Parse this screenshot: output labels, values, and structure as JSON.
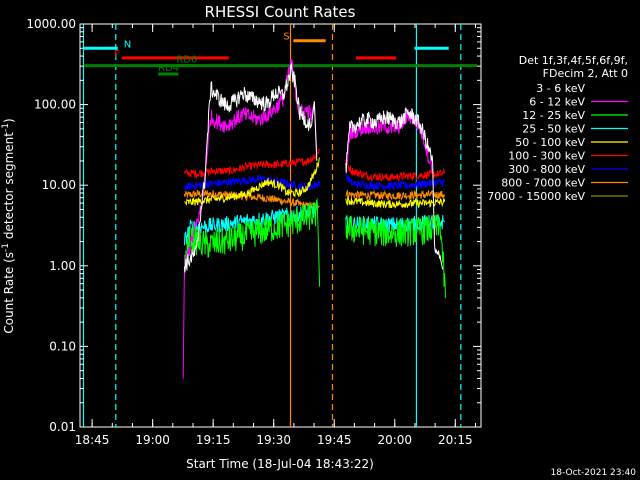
{
  "chart_data": {
    "type": "line",
    "title": "RHESSI Count Rates",
    "xlabel": "Start Time (18-Jul-04 18:43:22)",
    "ylabel_main": "Count Rate (s",
    "ylabel_sup": "-1",
    "ylabel_rest": " detector segment",
    "ylabel_sup2": "-1",
    "ylabel_close": ")",
    "yscale": "log",
    "ylim": [
      0.01,
      1000
    ],
    "xlim": [
      "18:43:22",
      "20:23:00"
    ],
    "y_tick_labels": [
      "0.01",
      "0.10",
      "1.00",
      "10.00",
      "100.00",
      "1000.00"
    ],
    "y_tick_values": [
      0.01,
      0.1,
      1,
      10,
      100,
      1000
    ],
    "x_tick_labels": [
      "18:45",
      "19:00",
      "19:15",
      "19:30",
      "19:45",
      "20:00",
      "20:15"
    ],
    "x_tick_minutes": [
      1.633,
      16.633,
      31.633,
      46.633,
      61.633,
      76.633,
      91.633
    ],
    "legend_header": [
      "Det 1f,3f,4f,5f,6f,9f,",
      "FDecim 2, Att 0"
    ],
    "series": [
      {
        "name": "3 - 6 keV",
        "color": "#000000",
        "seg1": [
          [
            24.5,
            1.0
          ],
          [
            27.5,
            1.5
          ],
          [
            28.5,
            4.5
          ],
          [
            29.5,
            11.0
          ],
          [
            31,
            160
          ],
          [
            33,
            120
          ],
          [
            35,
            95
          ],
          [
            37,
            110
          ],
          [
            39,
            140
          ],
          [
            41,
            120
          ],
          [
            43,
            110
          ],
          [
            45,
            100
          ],
          [
            47,
            140
          ],
          [
            49,
            130
          ],
          [
            51,
            260
          ],
          [
            52,
            180
          ],
          [
            53,
            80
          ],
          [
            55,
            60
          ],
          [
            56,
            55
          ],
          [
            56.7,
            110
          ],
          [
            57.3,
            20
          ]
        ],
        "seg2": [
          [
            64.5,
            15
          ],
          [
            65.5,
            50
          ],
          [
            68,
            60
          ],
          [
            70,
            65
          ],
          [
            72,
            60
          ],
          [
            74,
            70
          ],
          [
            76,
            65
          ],
          [
            78,
            60
          ],
          [
            80,
            80
          ],
          [
            82,
            65
          ],
          [
            83,
            55
          ],
          [
            84,
            40
          ],
          [
            86,
            20
          ],
          [
            86.5,
            1.5
          ],
          [
            88,
            1.2
          ],
          [
            88.5,
            0.9
          ]
        ]
      },
      {
        "name": "6 - 12 keV",
        "color": "#ff00ff",
        "seg1": [
          [
            24.2,
            0.04
          ],
          [
            24.5,
            1.0
          ],
          [
            28.8,
            5.5
          ],
          [
            29.5,
            12
          ],
          [
            31,
            70
          ],
          [
            33,
            60
          ],
          [
            35,
            55
          ],
          [
            37,
            65
          ],
          [
            39,
            75
          ],
          [
            41,
            70
          ],
          [
            43,
            65
          ],
          [
            45,
            75
          ],
          [
            47,
            90
          ],
          [
            49,
            120
          ],
          [
            50,
            200
          ],
          [
            51,
            350
          ],
          [
            52,
            150
          ],
          [
            53,
            80
          ],
          [
            55,
            85
          ],
          [
            56,
            75
          ],
          [
            56.7,
            110
          ],
          [
            57.3,
            25
          ]
        ],
        "seg2": [
          [
            64.5,
            12
          ],
          [
            65.5,
            45
          ],
          [
            68,
            50
          ],
          [
            70,
            55
          ],
          [
            72,
            50
          ],
          [
            74,
            55
          ],
          [
            76,
            50
          ],
          [
            78,
            55
          ],
          [
            80,
            75
          ],
          [
            82,
            60
          ],
          [
            83,
            50
          ],
          [
            84,
            35
          ],
          [
            86,
            15
          ]
        ]
      },
      {
        "name": "12 - 25 keV",
        "color": "#00ff00",
        "seg1": [
          [
            24.5,
            1.0
          ],
          [
            26,
            2.2
          ],
          [
            30,
            1.8
          ],
          [
            35,
            2.0
          ],
          [
            40,
            2.4
          ],
          [
            45,
            2.8
          ],
          [
            50,
            3.3
          ],
          [
            55,
            4.0
          ],
          [
            57.5,
            4.5
          ],
          [
            58.0,
            0.55
          ]
        ],
        "seg2": [
          [
            64.5,
            3.0
          ],
          [
            66,
            2.8
          ],
          [
            70,
            2.7
          ],
          [
            75,
            2.5
          ],
          [
            80,
            2.6
          ],
          [
            85,
            2.8
          ],
          [
            88,
            3.0
          ],
          [
            89.2,
            0.4
          ]
        ]
      },
      {
        "name": "25 - 50 keV",
        "color": "#00ffff",
        "seg1": [
          [
            24.5,
            2.0
          ],
          [
            26,
            3.0
          ],
          [
            30,
            3.1
          ],
          [
            35,
            3.3
          ],
          [
            40,
            3.6
          ],
          [
            45,
            3.9
          ],
          [
            50,
            4.2
          ],
          [
            55,
            4.6
          ],
          [
            57.5,
            5.0
          ]
        ],
        "seg2": [
          [
            64.5,
            3.4
          ],
          [
            66,
            3.3
          ],
          [
            70,
            3.3
          ],
          [
            75,
            3.2
          ],
          [
            80,
            3.3
          ],
          [
            85,
            3.4
          ],
          [
            89,
            3.5
          ]
        ]
      },
      {
        "name": "50 - 100 keV",
        "color": "#ffff00",
        "seg1": [
          [
            24.5,
            6.0
          ],
          [
            30,
            6.5
          ],
          [
            35,
            7.0
          ],
          [
            40,
            7.8
          ],
          [
            42,
            9.0
          ],
          [
            45,
            11
          ],
          [
            48,
            10
          ],
          [
            50,
            8.0
          ],
          [
            53,
            8.0
          ],
          [
            55,
            9.5
          ],
          [
            57,
            15
          ],
          [
            58,
            22
          ]
        ],
        "seg2": [
          [
            64.5,
            6.5
          ],
          [
            70,
            6.0
          ],
          [
            75,
            5.8
          ],
          [
            80,
            5.9
          ],
          [
            85,
            6.0
          ],
          [
            89,
            6.2
          ]
        ]
      },
      {
        "name": "100 - 300 keV",
        "color": "#ff0000",
        "seg1": [
          [
            24.5,
            14
          ],
          [
            28,
            14
          ],
          [
            32,
            15
          ],
          [
            36,
            15
          ],
          [
            40,
            17
          ],
          [
            44,
            18
          ],
          [
            48,
            18
          ],
          [
            52,
            19
          ],
          [
            55,
            20
          ],
          [
            57,
            23
          ],
          [
            58,
            28
          ]
        ],
        "seg2": [
          [
            64.5,
            19
          ],
          [
            66,
            15
          ],
          [
            70,
            13
          ],
          [
            75,
            12.5
          ],
          [
            80,
            13
          ],
          [
            85,
            13.5
          ],
          [
            89,
            14
          ]
        ]
      },
      {
        "name": "300 - 800 keV",
        "color": "#0000ff",
        "seg1": [
          [
            24.5,
            9.5
          ],
          [
            28,
            10
          ],
          [
            32,
            10.5
          ],
          [
            36,
            11
          ],
          [
            40,
            11.5
          ],
          [
            44,
            12
          ],
          [
            48,
            11
          ],
          [
            52,
            10
          ],
          [
            55,
            9.5
          ],
          [
            57,
            10
          ],
          [
            58,
            11
          ]
        ],
        "seg2": [
          [
            64.5,
            13
          ],
          [
            66,
            10.5
          ],
          [
            70,
            10
          ],
          [
            75,
            9.8
          ],
          [
            80,
            10
          ],
          [
            85,
            10.5
          ],
          [
            89,
            11
          ]
        ]
      },
      {
        "name": "800 - 7000 keV",
        "color": "#ff8c00",
        "seg1": [
          [
            24.5,
            7.5
          ],
          [
            28,
            7.8
          ],
          [
            32,
            7.8
          ],
          [
            36,
            7.5
          ],
          [
            40,
            7.2
          ],
          [
            44,
            7.0
          ],
          [
            48,
            6.5
          ],
          [
            52,
            6.0
          ],
          [
            55,
            5.5
          ],
          [
            58,
            5.5
          ]
        ],
        "seg2": [
          [
            64.5,
            8.0
          ],
          [
            66,
            7.6
          ],
          [
            70,
            7.5
          ],
          [
            75,
            7.4
          ],
          [
            80,
            7.5
          ],
          [
            85,
            7.6
          ],
          [
            89,
            7.6
          ]
        ]
      },
      {
        "name": "7000 - 15000 keV",
        "color": "#8b8b00",
        "seg1": [],
        "seg2": []
      }
    ],
    "bars": [
      {
        "label": "N",
        "color": "#00ffff",
        "from": -0.5,
        "to": 8,
        "y": 500
      },
      {
        "label": "",
        "color": "#00ffff",
        "from": 81.5,
        "to": 90,
        "y": 500
      },
      {
        "label": "F",
        "color": "#ff0000",
        "from": 9,
        "to": 35.5,
        "y": 380
      },
      {
        "label": "",
        "color": "#ff0000",
        "from": 67,
        "to": 77,
        "y": 380
      },
      {
        "label": "",
        "color": "#008000",
        "from": -0.5,
        "to": 97,
        "y": 305
      },
      {
        "label": "RD0",
        "color": "#008000",
        "from": 22.5,
        "to": 27.5,
        "y": 305
      },
      {
        "label": "RD4",
        "color": "#008000",
        "from": 18,
        "to": 23,
        "y": 240
      },
      {
        "label": "S",
        "color": "#ff8c00",
        "from": 51.5,
        "to": 59.5,
        "y": 620
      }
    ],
    "vlines": [
      {
        "x": -0.5,
        "color": "#00ffff",
        "dash": false
      },
      {
        "x": 7.5,
        "color": "#00ffff",
        "dash": true
      },
      {
        "x": 50.8,
        "color": "#ff8c00",
        "dash": false
      },
      {
        "x": 61.2,
        "color": "#ff8c00",
        "dash": true
      },
      {
        "x": 82.0,
        "color": "#00ffff",
        "dash": false
      },
      {
        "x": 93.0,
        "color": "#00ffff",
        "dash": true
      }
    ],
    "footer": "18-Oct-2021 23:40"
  }
}
